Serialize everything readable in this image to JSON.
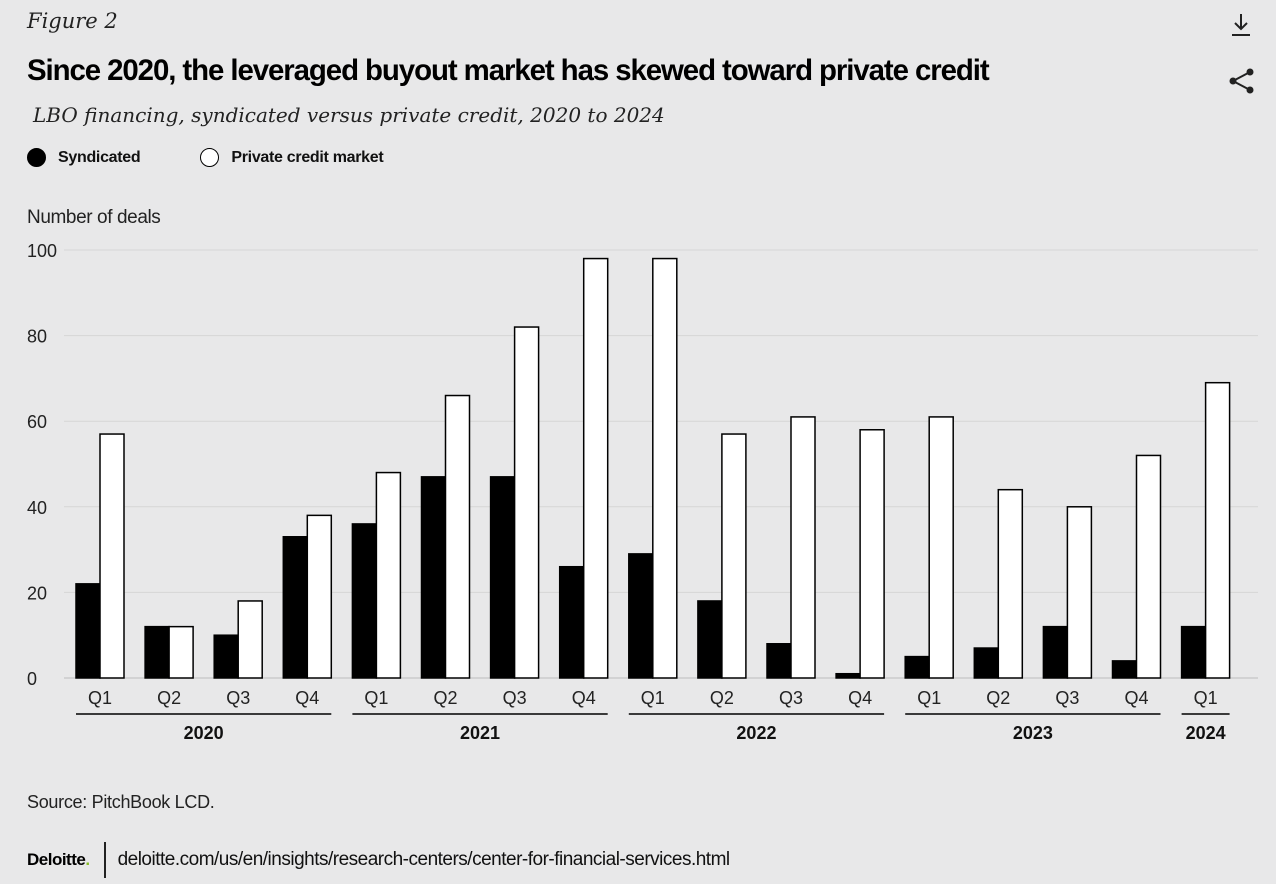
{
  "header": {
    "figure_label": "Figure 2",
    "title": "Since 2020, the leveraged buyout market has skewed toward private credit",
    "subtitle": "LBO financing, syndicated versus private credit, 2020 to 2024"
  },
  "toolbar": {
    "download_icon": "download-icon",
    "share_icon": "share-icon"
  },
  "legend": {
    "items": [
      {
        "label": "Syndicated",
        "color": "#000000"
      },
      {
        "label": "Private credit market",
        "color": "#ffffff"
      }
    ]
  },
  "chart_data": {
    "type": "bar",
    "ylabel": "Number of deals",
    "ylim": [
      0,
      100
    ],
    "yticks": [
      0,
      20,
      40,
      60,
      80,
      100
    ],
    "grid": true,
    "legend_position": "top-left",
    "categories": [
      "Q1",
      "Q2",
      "Q3",
      "Q4",
      "Q1",
      "Q2",
      "Q3",
      "Q4",
      "Q1",
      "Q2",
      "Q3",
      "Q4",
      "Q1",
      "Q2",
      "Q3",
      "Q4",
      "Q1"
    ],
    "groups": [
      {
        "label": "2020",
        "count": 4
      },
      {
        "label": "2021",
        "count": 4
      },
      {
        "label": "2022",
        "count": 4
      },
      {
        "label": "2023",
        "count": 4
      },
      {
        "label": "2024",
        "count": 1
      }
    ],
    "series": [
      {
        "name": "Syndicated",
        "color": "#000000",
        "values": [
          22,
          12,
          10,
          33,
          36,
          47,
          47,
          26,
          29,
          18,
          8,
          1,
          5,
          7,
          12,
          4,
          12
        ]
      },
      {
        "name": "Private credit market",
        "color": "#ffffff",
        "values": [
          57,
          12,
          18,
          38,
          48,
          66,
          82,
          98,
          98,
          57,
          61,
          58,
          61,
          44,
          40,
          52,
          69
        ]
      }
    ]
  },
  "footer": {
    "source": "Source: PitchBook  LCD.",
    "logo": "Deloitte",
    "logo_dot": ".",
    "url": "deloitte.com/us/en/insights/research-centers/center-for-financial-services.html"
  }
}
